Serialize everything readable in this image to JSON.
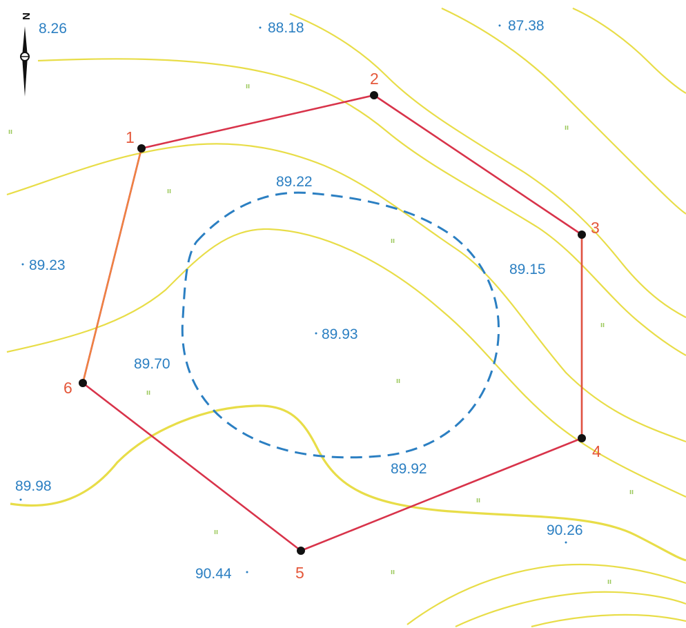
{
  "north_arrow": {
    "label": "N",
    "icon": "north-arrow-icon"
  },
  "elevations": [
    {
      "id": "e1",
      "text": "8.26"
    },
    {
      "id": "e2",
      "text": "88.18"
    },
    {
      "id": "e3",
      "text": "87.38"
    },
    {
      "id": "e4",
      "text": "89.22"
    },
    {
      "id": "e5",
      "text": "89.23"
    },
    {
      "id": "e6",
      "text": "89.15"
    },
    {
      "id": "e7",
      "text": "89.93"
    },
    {
      "id": "e8",
      "text": "89.70"
    },
    {
      "id": "e9",
      "text": "89.92"
    },
    {
      "id": "e10",
      "text": "89.98"
    },
    {
      "id": "e11",
      "text": "90.26"
    },
    {
      "id": "e12",
      "text": "90.44"
    }
  ],
  "vertices": [
    {
      "id": "v1",
      "label": "1"
    },
    {
      "id": "v2",
      "label": "2"
    },
    {
      "id": "v3",
      "label": "3"
    },
    {
      "id": "v4",
      "label": "4"
    },
    {
      "id": "v5",
      "label": "5"
    },
    {
      "id": "v6",
      "label": "6"
    }
  ],
  "grass_symbol": "ıı",
  "colors": {
    "parcel_line": "#d8334a",
    "contour": "#e8dd48",
    "contour_edge": "#d49ac4",
    "dashed_contour": "#2b7fc2",
    "elevation_text": "#2b7fc2",
    "vertex_label": "#e4573a",
    "grass": "#9bc85a"
  }
}
